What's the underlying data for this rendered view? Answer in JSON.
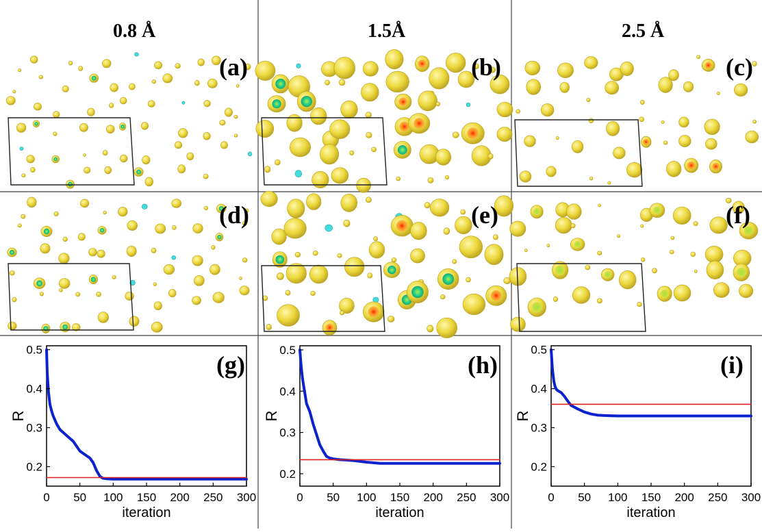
{
  "columns": [
    {
      "header": "0.8 Å"
    },
    {
      "header": "1.5Å"
    },
    {
      "header": "2.5 Å"
    }
  ],
  "panels": [
    "(a)",
    "(b)",
    "(c)",
    "(d)",
    "(e)",
    "(f)",
    "(g)",
    "(h)",
    "(i)"
  ],
  "colors": {
    "blob_fill": "#ecd83c",
    "blob_edge": "#b8a020",
    "core_green": "#22cc88",
    "core_cyan": "#44dddd",
    "core_red": "#ee3311",
    "curve": "#0b22cc",
    "reference": "#e02020",
    "divider": "#444444"
  },
  "chart_data": [
    {
      "type": "line",
      "panel": "(g)",
      "xlabel": "iteration",
      "ylabel": "R",
      "xlim": [
        0,
        300
      ],
      "ylim": [
        0.15,
        0.51
      ],
      "xticks": [
        0,
        50,
        100,
        150,
        200,
        250,
        300
      ],
      "yticks": [
        0.2,
        0.3,
        0.4,
        0.5
      ],
      "series": [
        {
          "x": [
            0,
            1,
            3,
            5,
            8,
            10,
            15,
            20,
            30,
            40,
            50,
            60,
            65,
            70,
            75,
            80,
            85,
            90,
            100,
            150,
            200,
            250,
            300
          ],
          "y": [
            0.5,
            0.44,
            0.39,
            0.36,
            0.34,
            0.33,
            0.31,
            0.295,
            0.28,
            0.265,
            0.24,
            0.228,
            0.222,
            0.21,
            0.19,
            0.175,
            0.17,
            0.169,
            0.168,
            0.168,
            0.168,
            0.168,
            0.168
          ]
        },
        {
          "x": [
            0,
            300
          ],
          "y": [
            0.172,
            0.172
          ]
        }
      ]
    },
    {
      "type": "line",
      "panel": "(h)",
      "xlabel": "iteration",
      "ylabel": "R",
      "xlim": [
        0,
        300
      ],
      "ylim": [
        0.17,
        0.51
      ],
      "xticks": [
        0,
        50,
        100,
        150,
        200,
        250,
        300
      ],
      "yticks": [
        0.2,
        0.3,
        0.4,
        0.5
      ],
      "series": [
        {
          "x": [
            0,
            2,
            4,
            6,
            8,
            10,
            15,
            20,
            25,
            30,
            35,
            40,
            45,
            50,
            60,
            80,
            100,
            120,
            150,
            200,
            250,
            300
          ],
          "y": [
            0.5,
            0.46,
            0.43,
            0.41,
            0.39,
            0.37,
            0.35,
            0.32,
            0.295,
            0.27,
            0.255,
            0.242,
            0.238,
            0.236,
            0.234,
            0.232,
            0.228,
            0.225,
            0.225,
            0.225,
            0.225,
            0.225
          ]
        },
        {
          "x": [
            0,
            300
          ],
          "y": [
            0.234,
            0.234
          ]
        }
      ]
    },
    {
      "type": "line",
      "panel": "(i)",
      "xlabel": "iteration",
      "ylabel": "R",
      "xlim": [
        0,
        300
      ],
      "ylim": [
        0.15,
        0.51
      ],
      "xticks": [
        0,
        50,
        100,
        150,
        200,
        250,
        300
      ],
      "yticks": [
        0.2,
        0.3,
        0.4,
        0.5
      ],
      "series": [
        {
          "x": [
            0,
            2,
            4,
            6,
            8,
            10,
            15,
            20,
            25,
            30,
            40,
            50,
            60,
            70,
            80,
            100,
            150,
            200,
            250,
            300
          ],
          "y": [
            0.5,
            0.45,
            0.42,
            0.405,
            0.398,
            0.395,
            0.39,
            0.38,
            0.368,
            0.357,
            0.348,
            0.34,
            0.335,
            0.332,
            0.331,
            0.33,
            0.33,
            0.33,
            0.33,
            0.33
          ]
        },
        {
          "x": [
            0,
            300
          ],
          "y": [
            0.36,
            0.36
          ]
        }
      ]
    }
  ]
}
